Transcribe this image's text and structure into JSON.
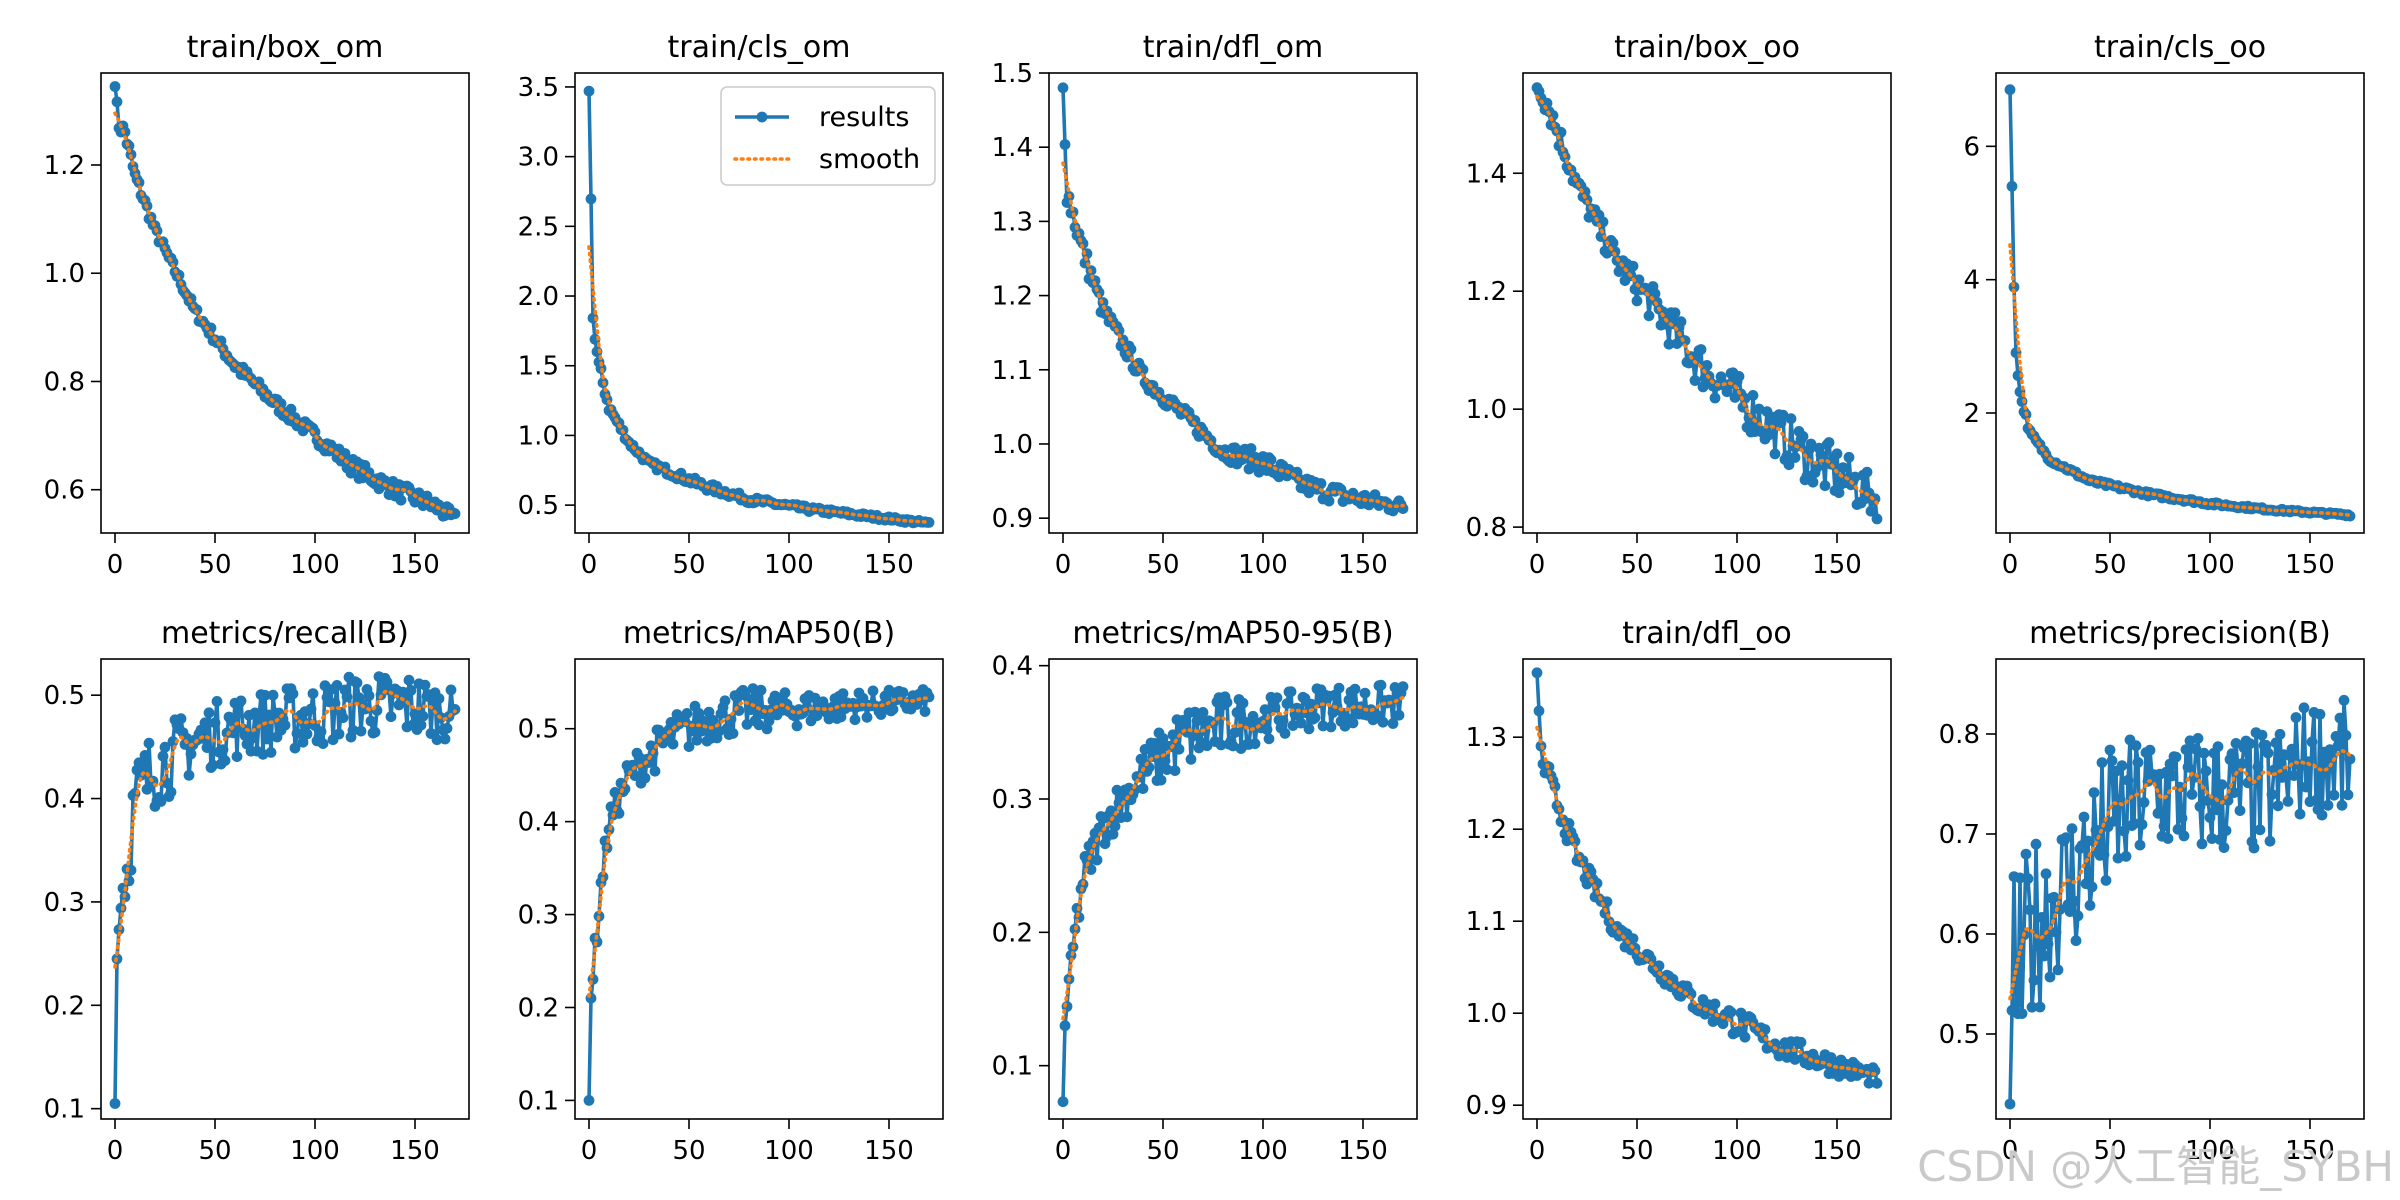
{
  "watermark": "CSDN @人工智能_SYBH",
  "colors": {
    "results": "#1f77b4",
    "smooth": "#ff7f0e",
    "axes": "#000000",
    "background": "#ffffff"
  },
  "legend": {
    "results_label": "results",
    "smooth_label": "smooth",
    "placement": "top-right of train/cls_om"
  },
  "chart_data": [
    {
      "type": "line",
      "title": "train/box_om",
      "xlim": [
        -7,
        177
      ],
      "ylim": [
        0.52,
        1.37
      ],
      "xticks": [
        0,
        50,
        100,
        150
      ],
      "yticks": [
        0.6,
        0.8,
        1.0,
        1.2
      ],
      "ytick_labels": [
        "0.6",
        "0.8",
        "1.0",
        "1.2"
      ],
      "series": [
        {
          "name": "results",
          "x": [
            0,
            170
          ],
          "y": [
            1.345,
            0.545
          ]
        },
        {
          "name": "smooth",
          "x": [
            0,
            170
          ],
          "y": [
            1.29,
            0.55
          ]
        }
      ],
      "shape": {
        "curve": "decay",
        "k": 0.0106
      },
      "noise": [
        [
          0,
          1.345,
          0
        ],
        [
          2,
          1.275,
          0.01
        ],
        [
          5,
          1.26,
          0.01
        ],
        [
          10,
          1.18,
          0.008
        ],
        [
          20,
          1.08,
          0.006
        ],
        [
          40,
          0.93,
          0.006
        ],
        [
          60,
          0.83,
          0.008
        ],
        [
          80,
          0.76,
          0.008
        ],
        [
          100,
          0.7,
          0.008
        ],
        [
          120,
          0.64,
          0.01
        ],
        [
          140,
          0.6,
          0.01
        ],
        [
          160,
          0.57,
          0.01
        ],
        [
          170,
          0.545,
          0.008
        ]
      ]
    },
    {
      "type": "line",
      "title": "train/cls_om",
      "xlim": [
        -7,
        177
      ],
      "ylim": [
        0.3,
        3.6
      ],
      "xticks": [
        0,
        50,
        100,
        150
      ],
      "yticks": [
        0.5,
        1.0,
        1.5,
        2.0,
        2.5,
        3.0,
        3.5
      ],
      "ytick_labels": [
        "0.5",
        "1.0",
        "1.5",
        "2.0",
        "2.5",
        "3.0",
        "3.5"
      ],
      "legend": true,
      "series": [
        {
          "name": "results",
          "x": [
            0,
            170
          ],
          "y": [
            3.47,
            0.37
          ]
        },
        {
          "name": "smooth",
          "x": [
            0,
            170
          ],
          "y": [
            2.1,
            0.38
          ]
        }
      ],
      "shape": {
        "curve": "steep",
        "k": 0.055
      },
      "noise": [
        [
          0,
          3.47,
          0
        ],
        [
          2,
          1.9,
          0.05
        ],
        [
          3,
          1.69,
          0.03
        ],
        [
          5,
          1.5,
          0.03
        ],
        [
          10,
          1.2,
          0.02
        ],
        [
          20,
          0.95,
          0.015
        ],
        [
          30,
          0.8,
          0.015
        ],
        [
          55,
          0.65,
          0.02
        ],
        [
          80,
          0.54,
          0.015
        ],
        [
          110,
          0.47,
          0.012
        ],
        [
          140,
          0.42,
          0.01
        ],
        [
          170,
          0.37,
          0.008
        ]
      ]
    },
    {
      "type": "line",
      "title": "train/dfl_om",
      "xlim": [
        -7,
        177
      ],
      "ylim": [
        0.88,
        1.5
      ],
      "xticks": [
        0,
        50,
        100,
        150
      ],
      "yticks": [
        0.9,
        1.0,
        1.1,
        1.2,
        1.3,
        1.4,
        1.5
      ],
      "ytick_labels": [
        "0.9",
        "1.0",
        "1.1",
        "1.2",
        "1.3",
        "1.4",
        "1.5"
      ],
      "series": [
        {
          "name": "results",
          "x": [
            0,
            170
          ],
          "y": [
            1.48,
            0.915
          ]
        },
        {
          "name": "smooth",
          "x": [
            0,
            170
          ],
          "y": [
            1.36,
            0.915
          ]
        }
      ],
      "shape": {
        "curve": "steep",
        "k": 0.022
      },
      "noise": [
        [
          0,
          1.48,
          0
        ],
        [
          2,
          1.34,
          0.01
        ],
        [
          5,
          1.31,
          0.01
        ],
        [
          10,
          1.26,
          0.01
        ],
        [
          20,
          1.18,
          0.008
        ],
        [
          40,
          1.09,
          0.007
        ],
        [
          60,
          1.04,
          0.007
        ],
        [
          80,
          0.99,
          0.007
        ],
        [
          100,
          0.975,
          0.01
        ],
        [
          120,
          0.945,
          0.008
        ],
        [
          140,
          0.93,
          0.008
        ],
        [
          170,
          0.915,
          0.006
        ]
      ]
    },
    {
      "type": "line",
      "title": "train/box_oo",
      "xlim": [
        -7,
        177
      ],
      "ylim": [
        0.79,
        1.57
      ],
      "xticks": [
        0,
        50,
        100,
        150
      ],
      "yticks": [
        0.8,
        1.0,
        1.2,
        1.4
      ],
      "ytick_labels": [
        "0.8",
        "1.0",
        "1.2",
        "1.4"
      ],
      "series": [
        {
          "name": "results",
          "x": [
            0,
            170
          ],
          "y": [
            1.545,
            0.845
          ]
        },
        {
          "name": "smooth",
          "x": [
            0,
            170
          ],
          "y": [
            1.52,
            0.86
          ]
        }
      ],
      "shape": {
        "curve": "decay",
        "k": 0.0055
      },
      "noise": [
        [
          0,
          1.545,
          0
        ],
        [
          5,
          1.52,
          0.015
        ],
        [
          20,
          1.38,
          0.012
        ],
        [
          40,
          1.25,
          0.015
        ],
        [
          60,
          1.17,
          0.02
        ],
        [
          80,
          1.08,
          0.025
        ],
        [
          100,
          1.02,
          0.025
        ],
        [
          120,
          0.96,
          0.025
        ],
        [
          140,
          0.91,
          0.03
        ],
        [
          160,
          0.87,
          0.025
        ],
        [
          170,
          0.845,
          0.02
        ]
      ]
    },
    {
      "type": "line",
      "title": "train/cls_oo",
      "xlim": [
        -7,
        177
      ],
      "ylim": [
        0.2,
        7.1
      ],
      "xticks": [
        0,
        50,
        100,
        150
      ],
      "yticks": [
        2,
        4,
        6
      ],
      "ytick_labels": [
        "2",
        "4",
        "6"
      ],
      "series": [
        {
          "name": "results",
          "x": [
            0,
            170
          ],
          "y": [
            6.85,
            0.47
          ]
        },
        {
          "name": "smooth",
          "x": [
            0,
            170
          ],
          "y": [
            4.0,
            0.48
          ]
        }
      ],
      "shape": {
        "curve": "steep",
        "k": 0.06
      },
      "noise": [
        [
          0,
          6.85,
          0
        ],
        [
          2,
          3.9,
          0.05
        ],
        [
          3,
          2.95,
          0.05
        ],
        [
          5,
          2.3,
          0.04
        ],
        [
          10,
          1.7,
          0.03
        ],
        [
          20,
          1.3,
          0.02
        ],
        [
          40,
          0.98,
          0.02
        ],
        [
          70,
          0.78,
          0.02
        ],
        [
          100,
          0.64,
          0.015
        ],
        [
          130,
          0.55,
          0.012
        ],
        [
          170,
          0.47,
          0.01
        ]
      ]
    },
    {
      "type": "line",
      "title": "metrics/recall(B)",
      "xlim": [
        -7,
        177
      ],
      "ylim": [
        0.09,
        0.535
      ],
      "xticks": [
        0,
        50,
        100,
        150
      ],
      "yticks": [
        0.1,
        0.2,
        0.3,
        0.4,
        0.5
      ],
      "ytick_labels": [
        "0.1",
        "0.2",
        "0.3",
        "0.4",
        "0.5"
      ],
      "series": [
        {
          "name": "results",
          "x": [
            0,
            170
          ],
          "y": [
            0.105,
            0.48
          ]
        },
        {
          "name": "smooth",
          "x": [
            0,
            170
          ],
          "y": [
            0.23,
            0.49
          ]
        }
      ],
      "shape": {
        "curve": "rise"
      },
      "noise": [
        [
          0,
          0.105,
          0
        ],
        [
          1,
          0.245,
          0
        ],
        [
          3,
          0.305,
          0.01
        ],
        [
          6,
          0.33,
          0.02
        ],
        [
          10,
          0.4,
          0.025
        ],
        [
          20,
          0.43,
          0.025
        ],
        [
          40,
          0.455,
          0.02
        ],
        [
          60,
          0.47,
          0.02
        ],
        [
          80,
          0.475,
          0.02
        ],
        [
          100,
          0.48,
          0.02
        ],
        [
          120,
          0.49,
          0.02
        ],
        [
          150,
          0.49,
          0.02
        ],
        [
          170,
          0.48,
          0.015
        ]
      ]
    },
    {
      "type": "line",
      "title": "metrics/mAP50(B)",
      "xlim": [
        -7,
        177
      ],
      "ylim": [
        0.08,
        0.575
      ],
      "xticks": [
        0,
        50,
        100,
        150
      ],
      "yticks": [
        0.1,
        0.2,
        0.3,
        0.4,
        0.5
      ],
      "ytick_labels": [
        "0.1",
        "0.2",
        "0.3",
        "0.4",
        "0.5"
      ],
      "series": [
        {
          "name": "results",
          "x": [
            0,
            170
          ],
          "y": [
            0.1,
            0.53
          ]
        },
        {
          "name": "smooth",
          "x": [
            0,
            170
          ],
          "y": [
            0.22,
            0.525
          ]
        }
      ],
      "shape": {
        "curve": "rise"
      },
      "noise": [
        [
          0,
          0.1,
          0
        ],
        [
          1,
          0.21,
          0
        ],
        [
          3,
          0.26,
          0.01
        ],
        [
          6,
          0.33,
          0.01
        ],
        [
          10,
          0.4,
          0.01
        ],
        [
          20,
          0.45,
          0.012
        ],
        [
          40,
          0.49,
          0.015
        ],
        [
          60,
          0.51,
          0.015
        ],
        [
          80,
          0.52,
          0.015
        ],
        [
          100,
          0.52,
          0.012
        ],
        [
          130,
          0.525,
          0.01
        ],
        [
          170,
          0.53,
          0.008
        ]
      ]
    },
    {
      "type": "line",
      "title": "metrics/mAP50-95(B)",
      "xlim": [
        -7,
        177
      ],
      "ylim": [
        0.06,
        0.405
      ],
      "xticks": [
        0,
        50,
        100,
        150
      ],
      "yticks": [
        0.1,
        0.2,
        0.3,
        0.4
      ],
      "ytick_labels": [
        "0.1",
        "0.2",
        "0.3",
        "0.4"
      ],
      "series": [
        {
          "name": "results",
          "x": [
            0,
            170
          ],
          "y": [
            0.073,
            0.37
          ]
        },
        {
          "name": "smooth",
          "x": [
            0,
            170
          ],
          "y": [
            0.14,
            0.37
          ]
        }
      ],
      "shape": {
        "curve": "rise"
      },
      "noise": [
        [
          0,
          0.073,
          0
        ],
        [
          1,
          0.13,
          0
        ],
        [
          3,
          0.16,
          0.005
        ],
        [
          6,
          0.2,
          0.008
        ],
        [
          10,
          0.24,
          0.01
        ],
        [
          20,
          0.28,
          0.01
        ],
        [
          40,
          0.32,
          0.012
        ],
        [
          60,
          0.345,
          0.015
        ],
        [
          80,
          0.355,
          0.015
        ],
        [
          100,
          0.36,
          0.01
        ],
        [
          130,
          0.37,
          0.01
        ],
        [
          170,
          0.37,
          0.01
        ]
      ]
    },
    {
      "type": "line",
      "title": "train/dfl_oo",
      "xlim": [
        -7,
        177
      ],
      "ylim": [
        0.885,
        1.385
      ],
      "xticks": [
        0,
        50,
        100,
        150
      ],
      "yticks": [
        0.9,
        1.0,
        1.1,
        1.2,
        1.3
      ],
      "ytick_labels": [
        "0.9",
        "1.0",
        "1.1",
        "1.2",
        "1.3"
      ],
      "series": [
        {
          "name": "results",
          "x": [
            0,
            170
          ],
          "y": [
            1.37,
            0.93
          ]
        },
        {
          "name": "smooth",
          "x": [
            0,
            170
          ],
          "y": [
            1.28,
            0.93
          ]
        }
      ],
      "shape": {
        "curve": "decay",
        "k": 0.012
      },
      "noise": [
        [
          0,
          1.37,
          0
        ],
        [
          2,
          1.28,
          0.01
        ],
        [
          5,
          1.26,
          0.01
        ],
        [
          10,
          1.23,
          0.008
        ],
        [
          20,
          1.17,
          0.008
        ],
        [
          40,
          1.09,
          0.007
        ],
        [
          60,
          1.05,
          0.007
        ],
        [
          80,
          1.01,
          0.007
        ],
        [
          100,
          0.99,
          0.01
        ],
        [
          120,
          0.965,
          0.008
        ],
        [
          140,
          0.95,
          0.008
        ],
        [
          170,
          0.93,
          0.006
        ]
      ]
    },
    {
      "type": "line",
      "title": "metrics/precision(B)",
      "xlim": [
        -7,
        177
      ],
      "ylim": [
        0.415,
        0.875
      ],
      "xticks": [
        0,
        50,
        100,
        150
      ],
      "yticks": [
        0.5,
        0.6,
        0.7,
        0.8
      ],
      "ytick_labels": [
        "0.5",
        "0.6",
        "0.7",
        "0.8"
      ],
      "series": [
        {
          "name": "results",
          "x": [
            0,
            170
          ],
          "y": [
            0.43,
            0.77
          ]
        },
        {
          "name": "smooth",
          "x": [
            0,
            170
          ],
          "y": [
            0.55,
            0.78
          ]
        }
      ],
      "shape": {
        "curve": "rise"
      },
      "noise": [
        [
          0,
          0.43,
          0
        ],
        [
          2,
          0.58,
          0.06
        ],
        [
          5,
          0.55,
          0.07
        ],
        [
          10,
          0.6,
          0.06
        ],
        [
          20,
          0.63,
          0.05
        ],
        [
          30,
          0.65,
          0.05
        ],
        [
          50,
          0.71,
          0.05
        ],
        [
          70,
          0.74,
          0.04
        ],
        [
          100,
          0.74,
          0.04
        ],
        [
          130,
          0.74,
          0.04
        ],
        [
          150,
          0.78,
          0.035
        ],
        [
          170,
          0.77,
          0.04
        ]
      ]
    }
  ]
}
